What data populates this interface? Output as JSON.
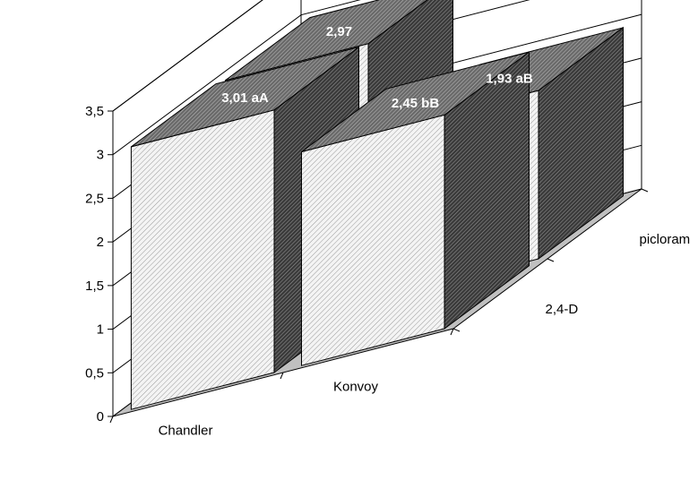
{
  "chart_data": {
    "type": "bar",
    "categories": [
      "Chandler",
      "Konvoy"
    ],
    "series": [
      {
        "name": "2,4-D",
        "values": [
          3.01,
          2.45
        ],
        "labels": [
          "3,01 aA",
          "2,45 bB"
        ]
      },
      {
        "name": "picloram",
        "values": [
          2.97,
          1.93
        ],
        "labels": [
          "2,97",
          "1,93 aB"
        ]
      }
    ],
    "ylim": [
      0,
      3.5
    ],
    "yticks": [
      "0",
      "0,5",
      "1",
      "1,5",
      "2",
      "2,5",
      "3",
      "3,5"
    ],
    "grid": true,
    "legend": "none",
    "colors": {
      "floor": "#c0c0c0",
      "bar_light": "#f2f2f2",
      "bar_dark": "#5a5a5a",
      "bar_top": "#8a8a8a"
    }
  }
}
